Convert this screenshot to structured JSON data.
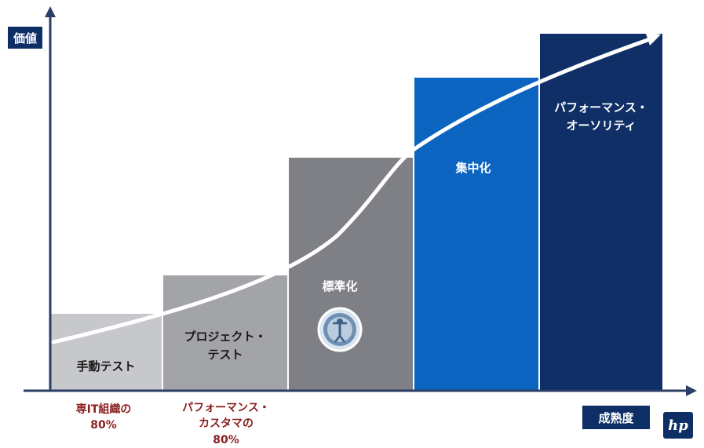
{
  "axes": {
    "y_label": "価値",
    "x_label": "成熟度"
  },
  "colors": {
    "step_1": "#c7c8cc",
    "step_2": "#a3a4a8",
    "step_3": "#7f8085",
    "step_4": "#0a64c0",
    "step_5": "#0f2f66",
    "axis": "#2b3e66",
    "curve": "#ffffff",
    "note": "#8b1e1e"
  },
  "stages": [
    {
      "id": "manual-test",
      "label_lines": [
        "手動テスト"
      ]
    },
    {
      "id": "project-test",
      "label_lines": [
        "プロジェクト・",
        "テスト"
      ]
    },
    {
      "id": "standardization",
      "label_lines": [
        "標準化"
      ]
    },
    {
      "id": "centralization",
      "label_lines": [
        "集中化"
      ]
    },
    {
      "id": "performance-authority",
      "label_lines": [
        "パフォーマンス・",
        "オーソリティ"
      ]
    }
  ],
  "notes": {
    "note_1_lines": [
      "専IT組織の",
      "80%"
    ],
    "note_2_lines": [
      "パフォーマンス・",
      "カスタマの",
      "80%"
    ]
  },
  "emblem_icon": "certification-seal-icon",
  "logo": {
    "text": "hp",
    "icon": "hp-logo-icon"
  }
}
